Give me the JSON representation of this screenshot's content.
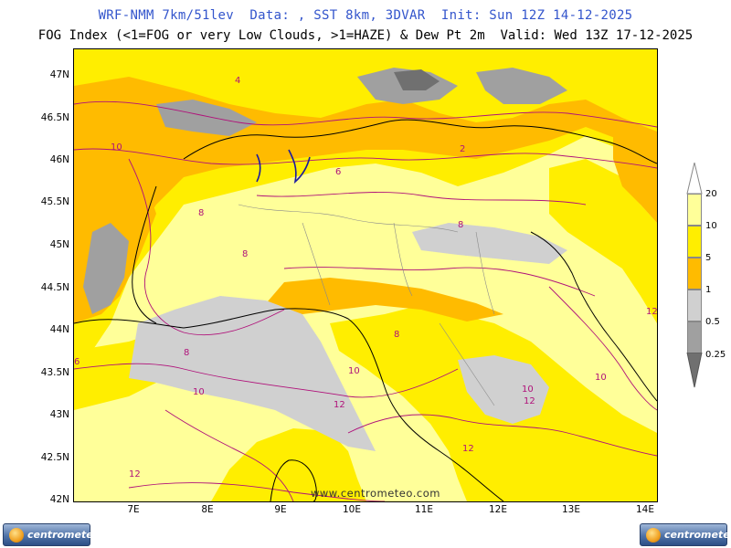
{
  "header": {
    "line1": "WRF-NMM 7km/51lev  Data: , SST 8km, 3DVAR  Init: Sun 12Z 14-12-2025",
    "line2": "FOG Index (<1=FOG or very Low Clouds, >1=HAZE) & Dew Pt 2m  Valid: Wed 13Z 17-12-2025"
  },
  "map": {
    "lat_labels": [
      "47N",
      "46.5N",
      "46N",
      "45.5N",
      "45N",
      "44.5N",
      "44N",
      "43.5N",
      "43N",
      "42.5N",
      "42N"
    ],
    "lon_labels": [
      "7E",
      "8E",
      "9E",
      "10E",
      "11E",
      "12E",
      "13E",
      "14E"
    ],
    "watermark": "www.centrometeo.com",
    "contour_labels": [
      "2",
      "4",
      "6",
      "8",
      "10",
      "12"
    ]
  },
  "legend": {
    "levels": [
      "20",
      "10",
      "5",
      "1",
      "0.5",
      "0.25"
    ],
    "colors": {
      "above_10": "#ffff99",
      "5_to_10": "#ffee00",
      "1_to_5": "#ffbb00",
      "0_5_to_1": "#d0d0d0",
      "0_25_to_0_5": "#a0a0a0",
      "below_0_25": "#707070"
    }
  },
  "logos": {
    "left": "centrometeo",
    "right": "centrometeo"
  }
}
